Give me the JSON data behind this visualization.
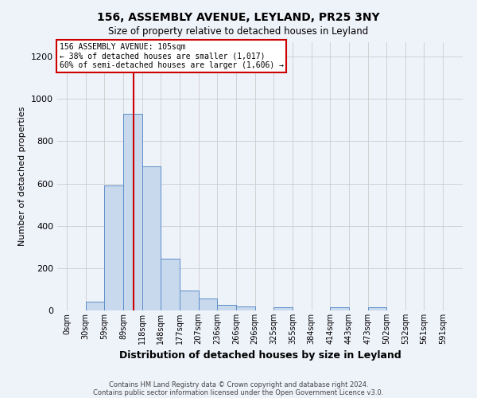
{
  "title1": "156, ASSEMBLY AVENUE, LEYLAND, PR25 3NY",
  "title2": "Size of property relative to detached houses in Leyland",
  "xlabel": "Distribution of detached houses by size in Leyland",
  "ylabel": "Number of detached properties",
  "footnote1": "Contains HM Land Registry data © Crown copyright and database right 2024.",
  "footnote2": "Contains public sector information licensed under the Open Government Licence v3.0.",
  "annotation_line1": "156 ASSEMBLY AVENUE: 105sqm",
  "annotation_line2": "← 38% of detached houses are smaller (1,017)",
  "annotation_line3": "60% of semi-detached houses are larger (1,606) →",
  "bar_left_edges": [
    0,
    29.5,
    59,
    88.5,
    118,
    147.5,
    177,
    206.5,
    236,
    265.5,
    295,
    324.5,
    354,
    383.5,
    413,
    442.5,
    472,
    501.5,
    531,
    560.5
  ],
  "bar_heights": [
    0,
    40,
    590,
    930,
    680,
    245,
    95,
    55,
    28,
    18,
    0,
    15,
    0,
    0,
    15,
    0,
    15,
    0,
    0,
    0
  ],
  "bar_width": 29.5,
  "bar_face_color": "#c8d9ee",
  "bar_edge_color": "#5b8dc8",
  "vline_x": 105,
  "vline_color": "#cc0000",
  "ylim": [
    0,
    1270
  ],
  "xlim": [
    -15,
    621
  ],
  "yticks": [
    0,
    200,
    400,
    600,
    800,
    1000,
    1200
  ],
  "xtick_labels": [
    "0sqm",
    "30sqm",
    "59sqm",
    "89sqm",
    "118sqm",
    "148sqm",
    "177sqm",
    "207sqm",
    "236sqm",
    "266sqm",
    "296sqm",
    "325sqm",
    "355sqm",
    "384sqm",
    "414sqm",
    "443sqm",
    "473sqm",
    "502sqm",
    "532sqm",
    "561sqm",
    "591sqm"
  ],
  "xtick_positions": [
    0,
    29.5,
    59,
    88.5,
    118,
    147.5,
    177,
    206.5,
    236,
    265.5,
    295,
    324.5,
    354,
    383.5,
    413,
    442.5,
    472,
    501.5,
    531,
    560.5,
    590
  ],
  "grid_color": "#cccccc",
  "bg_color": "#eef2f9",
  "plot_bg_color": "#eef2f9",
  "annotation_box_color": "#ffffff",
  "annotation_border_color": "#cc0000",
  "title1_fontsize": 10,
  "title2_fontsize": 8.5,
  "xlabel_fontsize": 9,
  "ylabel_fontsize": 8,
  "tick_fontsize": 7,
  "ytick_fontsize": 8,
  "annotation_fontsize": 7,
  "footnote_fontsize": 6
}
